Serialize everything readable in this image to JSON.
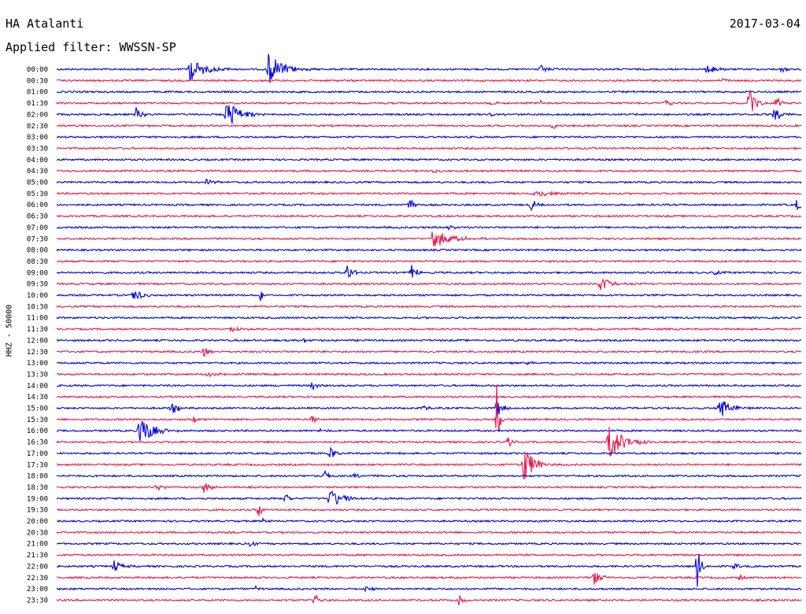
{
  "header": {
    "station": "HA Atalanti",
    "filter": "Applied filter: WWSSN-SP",
    "date": "2017-03-04"
  },
  "chart_data": {
    "type": "line",
    "title": "HA Atalanti",
    "subtitle": "Applied filter: WWSSN-SP",
    "date": "2017-03-04",
    "ylabel": "HHZ - 50000",
    "row_interval_minutes": 30,
    "row_labels": [
      "00:00",
      "00:30",
      "01:00",
      "01:30",
      "02:00",
      "02:30",
      "03:00",
      "03:30",
      "04:00",
      "04:30",
      "05:00",
      "05:30",
      "06:00",
      "06:30",
      "07:00",
      "07:30",
      "08:00",
      "08:30",
      "09:00",
      "09:30",
      "10:00",
      "10:30",
      "11:00",
      "11:30",
      "12:00",
      "12:30",
      "13:00",
      "13:30",
      "14:00",
      "14:30",
      "15:00",
      "15:30",
      "16:00",
      "16:30",
      "17:00",
      "17:30",
      "18:00",
      "18:30",
      "19:00",
      "19:30",
      "20:00",
      "20:30",
      "21:00",
      "21:30",
      "22:00",
      "22:30",
      "23:00",
      "23:30"
    ],
    "series_colors": [
      "#0000e6",
      "#e8174a"
    ],
    "grid": false,
    "events": [
      {
        "row": "00:00",
        "minute": 5.3,
        "amplitude": 18,
        "duration": 1.2
      },
      {
        "row": "00:00",
        "minute": 8.5,
        "amplitude": 22,
        "duration": 1.2
      },
      {
        "row": "00:00",
        "minute": 19.5,
        "amplitude": 6,
        "duration": 0.5
      },
      {
        "row": "00:00",
        "minute": 26.2,
        "amplitude": 12,
        "duration": 0.6
      },
      {
        "row": "00:00",
        "minute": 29.2,
        "amplitude": 6,
        "duration": 0.3
      },
      {
        "row": "00:30",
        "minute": 26.8,
        "amplitude": 3,
        "duration": 0.4
      },
      {
        "row": "01:30",
        "minute": 17.5,
        "amplitude": 4,
        "duration": 0.5
      },
      {
        "row": "01:30",
        "minute": 19.5,
        "amplitude": 5,
        "duration": 0.2
      },
      {
        "row": "01:30",
        "minute": 24.5,
        "amplitude": 4,
        "duration": 0.5
      },
      {
        "row": "01:30",
        "minute": 27.9,
        "amplitude": 20,
        "duration": 0.5
      },
      {
        "row": "01:30",
        "minute": 29.0,
        "amplitude": 12,
        "duration": 0.3
      },
      {
        "row": "02:00",
        "minute": 3.2,
        "amplitude": 10,
        "duration": 0.4
      },
      {
        "row": "02:00",
        "minute": 6.8,
        "amplitude": 20,
        "duration": 1.2
      },
      {
        "row": "02:00",
        "minute": 17.4,
        "amplitude": 4,
        "duration": 0.3
      },
      {
        "row": "02:00",
        "minute": 28.9,
        "amplitude": 12,
        "duration": 0.5
      },
      {
        "row": "02:30",
        "minute": 19.9,
        "amplitude": 5,
        "duration": 0.5
      },
      {
        "row": "04:30",
        "minute": 15.2,
        "amplitude": 4,
        "duration": 0.3
      },
      {
        "row": "05:00",
        "minute": 6.0,
        "amplitude": 4,
        "duration": 0.6
      },
      {
        "row": "05:30",
        "minute": 19.2,
        "amplitude": 4,
        "duration": 2.0
      },
      {
        "row": "06:00",
        "minute": 14.2,
        "amplitude": 16,
        "duration": 0.3
      },
      {
        "row": "06:00",
        "minute": 19.1,
        "amplitude": 12,
        "duration": 0.3
      },
      {
        "row": "06:00",
        "minute": 29.8,
        "amplitude": 10,
        "duration": 0.3
      },
      {
        "row": "07:00",
        "minute": 15.7,
        "amplitude": 5,
        "duration": 0.5
      },
      {
        "row": "07:30",
        "minute": 15.1,
        "amplitude": 12,
        "duration": 1.6
      },
      {
        "row": "09:00",
        "minute": 11.7,
        "amplitude": 14,
        "duration": 0.4
      },
      {
        "row": "09:00",
        "minute": 14.3,
        "amplitude": 12,
        "duration": 0.4
      },
      {
        "row": "09:00",
        "minute": 26.5,
        "amplitude": 4,
        "duration": 0.4
      },
      {
        "row": "09:30",
        "minute": 21.9,
        "amplitude": 12,
        "duration": 0.7
      },
      {
        "row": "10:00",
        "minute": 3.1,
        "amplitude": 11,
        "duration": 0.6
      },
      {
        "row": "10:00",
        "minute": 8.2,
        "amplitude": 9,
        "duration": 0.3
      },
      {
        "row": "11:30",
        "minute": 7.0,
        "amplitude": 3,
        "duration": 0.8
      },
      {
        "row": "12:00",
        "minute": 9.9,
        "amplitude": 5,
        "duration": 0.3
      },
      {
        "row": "12:30",
        "minute": 5.9,
        "amplitude": 10,
        "duration": 0.4
      },
      {
        "row": "13:00",
        "minute": 19.0,
        "amplitude": 5,
        "duration": 0.3
      },
      {
        "row": "13:30",
        "minute": 6.0,
        "amplitude": 3,
        "duration": 1.2
      },
      {
        "row": "14:00",
        "minute": 10.3,
        "amplitude": 10,
        "duration": 0.3
      },
      {
        "row": "15:00",
        "minute": 4.6,
        "amplitude": 8,
        "duration": 0.6
      },
      {
        "row": "15:00",
        "minute": 14.8,
        "amplitude": 4,
        "duration": 0.4
      },
      {
        "row": "15:00",
        "minute": 17.7,
        "amplitude": 30,
        "duration": 0.2
      },
      {
        "row": "15:00",
        "minute": 18.0,
        "amplitude": 5,
        "duration": 0.4
      },
      {
        "row": "15:00",
        "minute": 26.7,
        "amplitude": 18,
        "duration": 0.8
      },
      {
        "row": "15:30",
        "minute": 5.5,
        "amplitude": 7,
        "duration": 0.3
      },
      {
        "row": "15:30",
        "minute": 10.3,
        "amplitude": 8,
        "duration": 0.3
      },
      {
        "row": "15:30",
        "minute": 17.7,
        "amplitude": 60,
        "duration": 0.2
      },
      {
        "row": "16:00",
        "minute": 3.3,
        "amplitude": 24,
        "duration": 1.0
      },
      {
        "row": "16:00",
        "minute": 10.6,
        "amplitude": 4,
        "duration": 0.3
      },
      {
        "row": "16:30",
        "minute": 18.2,
        "amplitude": 8,
        "duration": 0.3
      },
      {
        "row": "16:30",
        "minute": 22.2,
        "amplitude": 26,
        "duration": 1.2
      },
      {
        "row": "17:00",
        "minute": 11.0,
        "amplitude": 16,
        "duration": 0.3
      },
      {
        "row": "17:30",
        "minute": 18.8,
        "amplitude": 28,
        "duration": 0.8
      },
      {
        "row": "18:00",
        "minute": 10.8,
        "amplitude": 10,
        "duration": 0.3
      },
      {
        "row": "18:00",
        "minute": 12.0,
        "amplitude": 3,
        "duration": 0.8
      },
      {
        "row": "18:30",
        "minute": 4.0,
        "amplitude": 8,
        "duration": 0.4
      },
      {
        "row": "18:30",
        "minute": 5.9,
        "amplitude": 8,
        "duration": 0.6
      },
      {
        "row": "19:00",
        "minute": 9.2,
        "amplitude": 8,
        "duration": 0.4
      },
      {
        "row": "19:00",
        "minute": 11.0,
        "amplitude": 16,
        "duration": 0.8
      },
      {
        "row": "19:00",
        "minute": 11.7,
        "amplitude": 6,
        "duration": 0.2
      },
      {
        "row": "19:30",
        "minute": 8.1,
        "amplitude": 12,
        "duration": 0.3
      },
      {
        "row": "20:00",
        "minute": 8.3,
        "amplitude": 3,
        "duration": 0.6
      },
      {
        "row": "21:00",
        "minute": 7.8,
        "amplitude": 8,
        "duration": 0.3
      },
      {
        "row": "22:00",
        "minute": 2.3,
        "amplitude": 8,
        "duration": 0.6
      },
      {
        "row": "22:00",
        "minute": 25.8,
        "amplitude": 30,
        "duration": 0.3
      },
      {
        "row": "22:00",
        "minute": 27.3,
        "amplitude": 5,
        "duration": 0.3
      },
      {
        "row": "22:30",
        "minute": 21.6,
        "amplitude": 14,
        "duration": 0.5
      },
      {
        "row": "22:30",
        "minute": 16.2,
        "amplitude": 4,
        "duration": 0.3
      },
      {
        "row": "22:30",
        "minute": 27.5,
        "amplitude": 4,
        "duration": 0.3
      },
      {
        "row": "23:00",
        "minute": 12.4,
        "amplitude": 5,
        "duration": 0.5
      },
      {
        "row": "23:00",
        "minute": 8.0,
        "amplitude": 4,
        "duration": 0.3
      },
      {
        "row": "23:30",
        "minute": 10.4,
        "amplitude": 10,
        "duration": 0.3
      },
      {
        "row": "23:30",
        "minute": 16.2,
        "amplitude": 8,
        "duration": 0.3
      }
    ]
  }
}
